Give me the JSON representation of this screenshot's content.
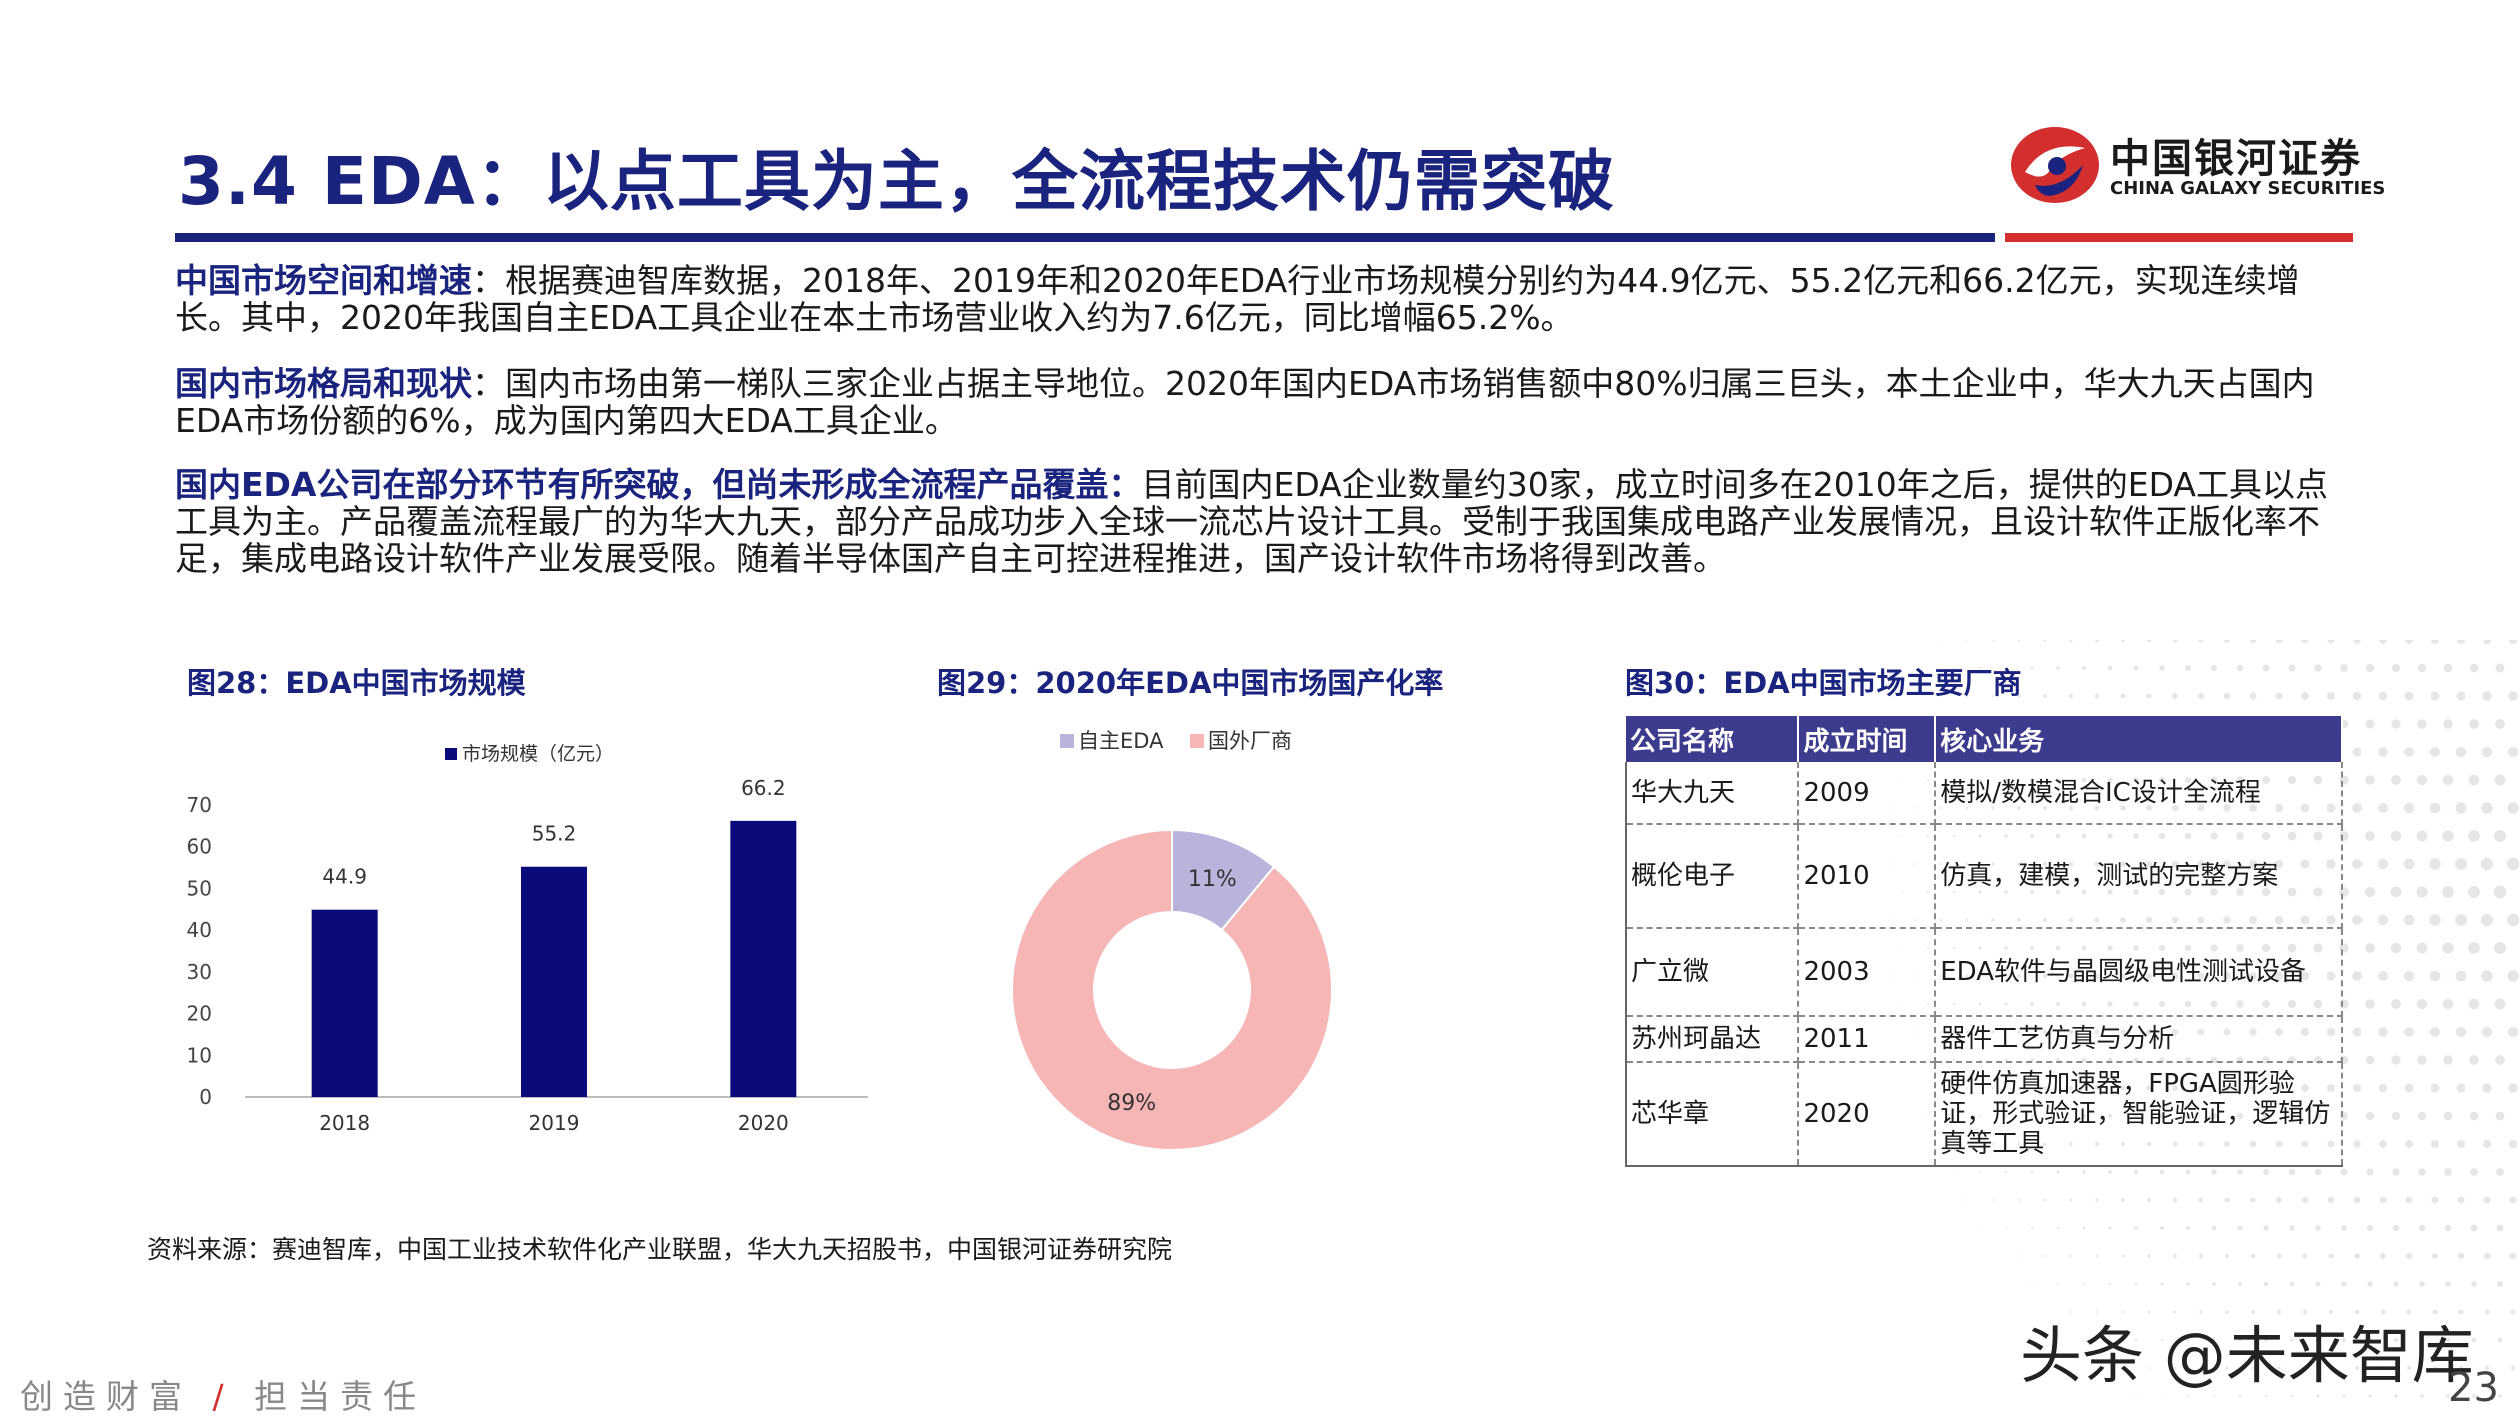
{
  "header": {
    "title": "3.4 EDA：以点工具为主，全流程技术仍需突破",
    "logo_cn": "中国银河证券",
    "logo_en": "CHINA GALAXY SECURITIES",
    "colors": {
      "brand_blue": "#1a237e",
      "brand_red": "#d32f2f"
    }
  },
  "paragraphs": [
    {
      "lead": "中国市场空间和增速",
      "text": "：根据赛迪智库数据，2018年、2019年和2020年EDA行业市场规模分别约为44.9亿元、55.2亿元和66.2亿元，实现连续增长。其中，2020年我国自主EDA工具企业在本土市场营业收入约为7.6亿元，同比增幅65.2%。"
    },
    {
      "lead": "国内市场格局和现状",
      "text": "：国内市场由第一梯队三家企业占据主导地位。2020年国内EDA市场销售额中80%归属三巨头，本土企业中，华大九天占国内EDA市场份额的6%，成为国内第四大EDA工具企业。"
    },
    {
      "lead": "国内EDA公司在部分环节有所突破，但尚未形成全流程产品覆盖：",
      "text": "目前国内EDA企业数量约30家，成立时间多在2010年之后，提供的EDA工具以点工具为主。产品覆盖流程最广的为华大九天，部分产品成功步入全球一流芯片设计工具。受制于我国集成电路产业发展情况，且设计软件正版化率不足，集成电路设计软件产业发展受限。随着半导体国产自主可控进程推进，国产设计软件市场将得到改善。"
    }
  ],
  "figures": {
    "fig28_title": "图28：EDA中国市场规模",
    "fig29_title": "图29：2020年EDA中国市场国产化率",
    "fig30_title": "图30：EDA中国市场主要厂商"
  },
  "chart_data": [
    {
      "type": "bar",
      "legend": "市场规模（亿元）",
      "categories": [
        "2018",
        "2019",
        "2020"
      ],
      "series": [
        {
          "name": "市场规模（亿元）",
          "values": [
            44.9,
            55.2,
            66.2
          ]
        }
      ],
      "ylim": [
        0,
        70
      ],
      "yticks": [
        "0",
        "10",
        "20",
        "30",
        "40",
        "50",
        "60",
        "70"
      ],
      "data_labels": [
        "44.9",
        "55.2",
        "66.2"
      ],
      "color": "#0a0a7a",
      "grid": false
    },
    {
      "type": "pie",
      "donut": true,
      "categories": [
        "自主EDA",
        "国外厂商"
      ],
      "values": [
        11,
        89
      ],
      "data_labels": [
        "11%",
        "89%"
      ],
      "colors": [
        "#b8b4dc",
        "#f7b6b6"
      ],
      "legend_position": "top"
    }
  ],
  "table": {
    "headers": [
      "公司名称",
      "成立时间",
      "核心业务"
    ],
    "rows": [
      [
        "华大九天",
        "2009",
        "模拟/数模混合IC设计全流程"
      ],
      [
        "概伦电子",
        "2010",
        "仿真，建模，测试的完整方案"
      ],
      [
        "广立微",
        "2003",
        "EDA软件与晶圆级电性测试设备"
      ],
      [
        "苏州珂晶达",
        "2011",
        "器件工艺仿真与分析"
      ],
      [
        "芯华章",
        "2020",
        "硬件仿真加速器，FPGA圆形验证，形式验证，智能验证，逻辑仿真等工具"
      ]
    ]
  },
  "source": "资料来源：赛迪智库，中国工业技术软件化产业联盟，华大九天招股书，中国银河证券研究院",
  "footer": {
    "slogan_left": "创造财富",
    "slogan_sep": "/",
    "slogan_right": "担当责任",
    "watermark": "头条 @未来智库",
    "page_number": "23"
  }
}
